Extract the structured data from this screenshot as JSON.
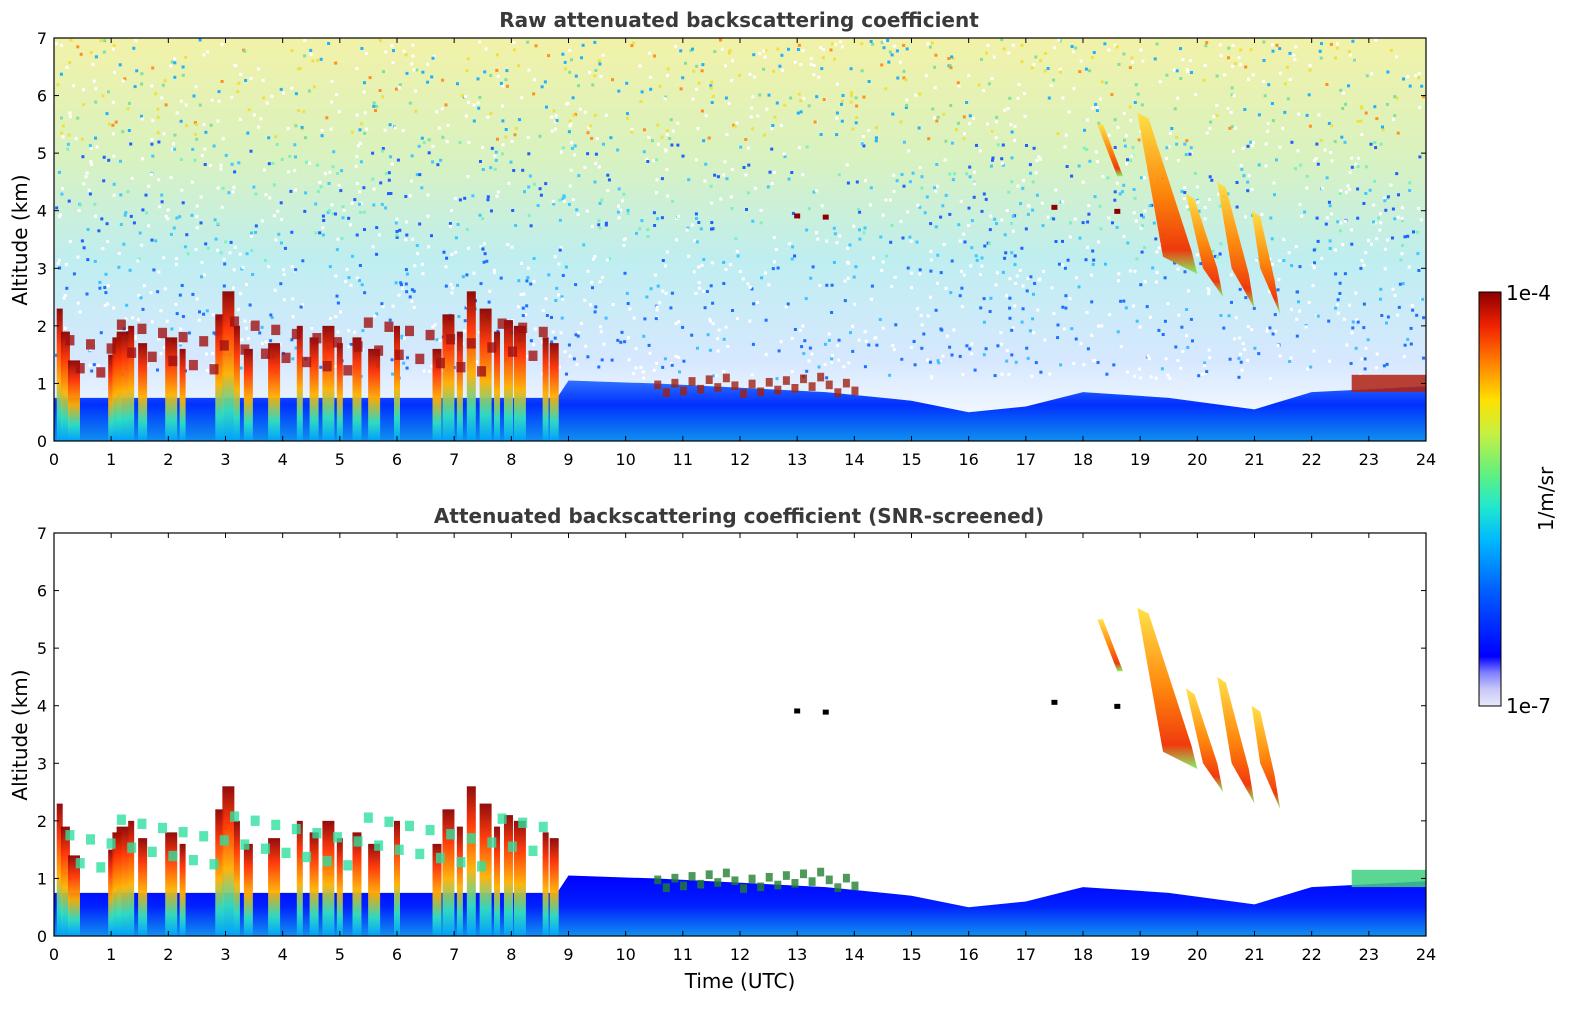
{
  "chart_data": [
    {
      "type": "heatmap",
      "title": "Raw attenuated backscattering coefficient",
      "xlabel": "",
      "ylabel": "Altitude (km)",
      "xlim": [
        0,
        24
      ],
      "ylim": [
        0,
        7
      ],
      "xticks": [
        "0",
        "1",
        "2",
        "3",
        "4",
        "5",
        "6",
        "7",
        "8",
        "9",
        "10",
        "11",
        "12",
        "13",
        "14",
        "15",
        "16",
        "17",
        "18",
        "19",
        "20",
        "21",
        "22",
        "23",
        "24"
      ],
      "yticks": [
        "0",
        "1",
        "2",
        "3",
        "4",
        "5",
        "6",
        "7"
      ],
      "features": [
        {
          "name": "boundary layer",
          "x": [
            0,
            24
          ],
          "top_km": 0.7
        },
        {
          "name": "low convective clouds",
          "x": [
            0,
            8.8
          ],
          "top_km": 2.6
        },
        {
          "name": "aerosol layer",
          "x": [
            10.5,
            14.0
          ],
          "top_km": 1.0
        },
        {
          "name": "falling cloud streaks",
          "x": [
            18.3,
            21.5
          ],
          "top_km": 5.6,
          "base_km": 2.2
        },
        {
          "name": "cloud layer",
          "x": [
            22.7,
            24
          ],
          "top_km": 1.1
        }
      ]
    },
    {
      "type": "heatmap",
      "title": "Attenuated backscattering coefficient (SNR-screened)",
      "xlabel": "Time (UTC)",
      "ylabel": "Altitude (km)",
      "xlim": [
        0,
        24
      ],
      "ylim": [
        0,
        7
      ],
      "xticks": [
        "0",
        "1",
        "2",
        "3",
        "4",
        "5",
        "6",
        "7",
        "8",
        "9",
        "10",
        "11",
        "12",
        "13",
        "14",
        "15",
        "16",
        "17",
        "18",
        "19",
        "20",
        "21",
        "22",
        "23",
        "24"
      ],
      "yticks": [
        "0",
        "1",
        "2",
        "3",
        "4",
        "5",
        "6",
        "7"
      ]
    }
  ],
  "colorbar": {
    "max_label": "1e-4",
    "min_label": "1e-7",
    "unit_label": "1/m/sr",
    "colors": [
      "#e8e8fa",
      "#c8c8f8",
      "#8080ff",
      "#0000ff",
      "#0060ff",
      "#00b8ff",
      "#20e8d0",
      "#60f080",
      "#c8f040",
      "#ffe000",
      "#ff8000",
      "#f02000",
      "#8b0000"
    ]
  }
}
